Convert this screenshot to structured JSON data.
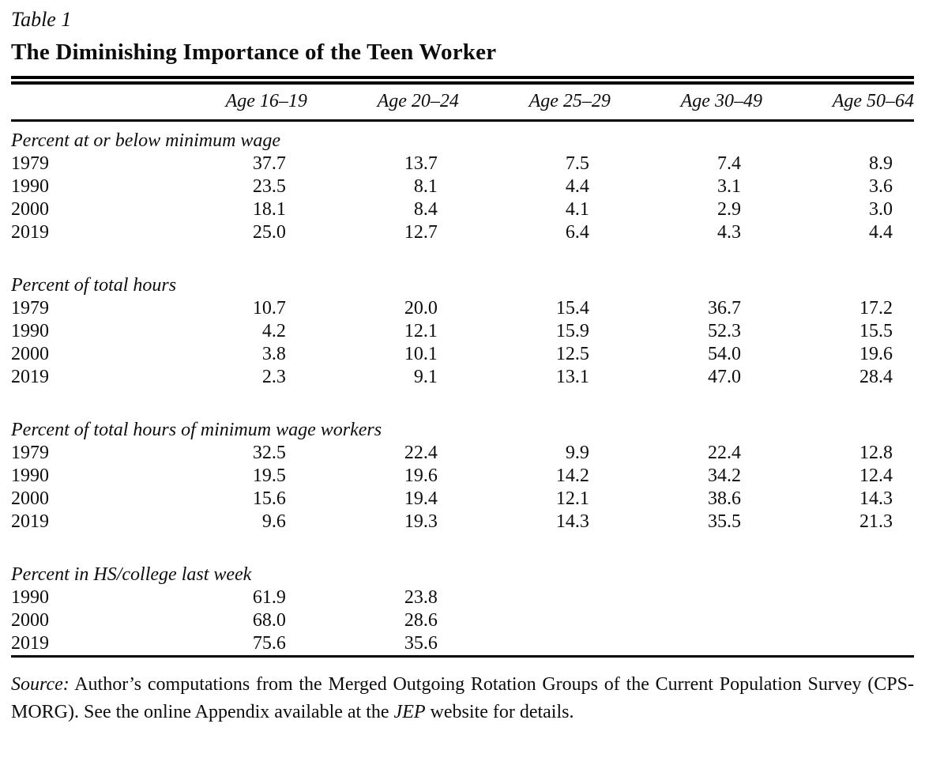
{
  "title": {
    "label": "Table 1",
    "heading": "The Diminishing Importance of the Teen Worker"
  },
  "table": {
    "column_headers": [
      "",
      "Age 16–19",
      "Age 20–24",
      "Age 25–29",
      "Age 30–49",
      "Age 50–64"
    ],
    "sections": [
      {
        "label": "Percent at or below minimum wage",
        "rows": [
          {
            "year": "1979",
            "values": [
              "37.7",
              "13.7",
              "7.5",
              "7.4",
              "8.9"
            ]
          },
          {
            "year": "1990",
            "values": [
              "23.5",
              "8.1",
              "4.4",
              "3.1",
              "3.6"
            ]
          },
          {
            "year": "2000",
            "values": [
              "18.1",
              "8.4",
              "4.1",
              "2.9",
              "3.0"
            ]
          },
          {
            "year": "2019",
            "values": [
              "25.0",
              "12.7",
              "6.4",
              "4.3",
              "4.4"
            ]
          }
        ]
      },
      {
        "label": "Percent of total hours",
        "rows": [
          {
            "year": "1979",
            "values": [
              "10.7",
              "20.0",
              "15.4",
              "36.7",
              "17.2"
            ]
          },
          {
            "year": "1990",
            "values": [
              "4.2",
              "12.1",
              "15.9",
              "52.3",
              "15.5"
            ]
          },
          {
            "year": "2000",
            "values": [
              "3.8",
              "10.1",
              "12.5",
              "54.0",
              "19.6"
            ]
          },
          {
            "year": "2019",
            "values": [
              "2.3",
              "9.1",
              "13.1",
              "47.0",
              "28.4"
            ]
          }
        ]
      },
      {
        "label": "Percent of total hours of minimum wage workers",
        "rows": [
          {
            "year": "1979",
            "values": [
              "32.5",
              "22.4",
              "9.9",
              "22.4",
              "12.8"
            ]
          },
          {
            "year": "1990",
            "values": [
              "19.5",
              "19.6",
              "14.2",
              "34.2",
              "12.4"
            ]
          },
          {
            "year": "2000",
            "values": [
              "15.6",
              "19.4",
              "12.1",
              "38.6",
              "14.3"
            ]
          },
          {
            "year": "2019",
            "values": [
              "9.6",
              "19.3",
              "14.3",
              "35.5",
              "21.3"
            ]
          }
        ]
      },
      {
        "label": "Percent in HS/college last week",
        "rows": [
          {
            "year": "1990",
            "values": [
              "61.9",
              "23.8",
              "",
              "",
              ""
            ]
          },
          {
            "year": "2000",
            "values": [
              "68.0",
              "28.6",
              "",
              "",
              ""
            ]
          },
          {
            "year": "2019",
            "values": [
              "75.6",
              "35.6",
              "",
              "",
              ""
            ]
          }
        ]
      }
    ]
  },
  "source": {
    "prefix": "Source:",
    "body1": " Author’s computations from the  Merged Outgoing Rotation Groups of the Current Population Survey (CPS-MORG). See the online Appendix available at the ",
    "jep": "JEP",
    "body2": " website for details."
  }
}
